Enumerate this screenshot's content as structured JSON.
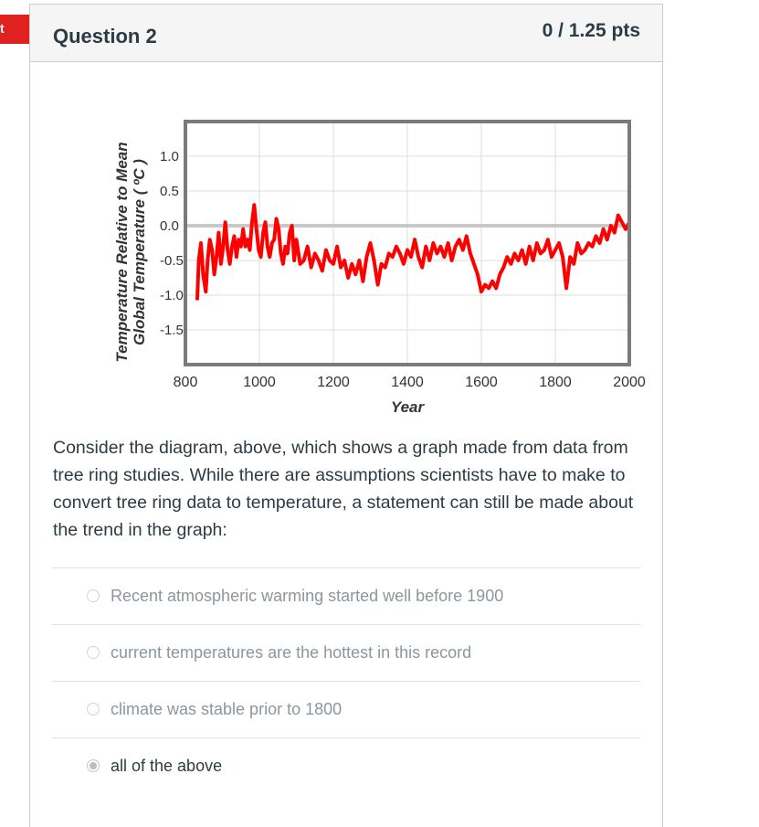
{
  "flag": {
    "label": "t",
    "color": "#e0211f"
  },
  "question": {
    "title": "Question 2",
    "points": "0 / 1.25 pts",
    "text": "Consider the diagram, above, which shows a graph made from data from tree ring studies. While there are assumptions scientists have to make to convert tree ring data to temperature, a statement can still be made about the trend in the graph:"
  },
  "answers": [
    {
      "label": "Recent atmospheric warming started well before 1900",
      "selected": false
    },
    {
      "label": "current temperatures are the hottest in this record",
      "selected": false
    },
    {
      "label": "climate was stable prior to 1800",
      "selected": false
    },
    {
      "label": "all of the above",
      "selected": true
    }
  ],
  "chart_data": {
    "type": "line",
    "title": "",
    "xlabel": "Year",
    "ylabel_line1": "Temperature Relative to Mean",
    "ylabel_line2": "Global Temperature ( ºC )",
    "xlim": [
      800,
      2000
    ],
    "ylim": [
      -2.0,
      1.5
    ],
    "x_ticks": [
      "800",
      "1000",
      "1200",
      "1400",
      "1600",
      "1800",
      "2000"
    ],
    "y_ticks": [
      "1.0",
      "0.5",
      "0.0",
      "-0.5",
      "-1.0",
      "-1.5"
    ],
    "x_tick_values": [
      800,
      1000,
      1200,
      1400,
      1600,
      1800,
      2000
    ],
    "y_tick_values": [
      1.0,
      0.5,
      0.0,
      -0.5,
      -1.0,
      -1.5
    ],
    "grid": true,
    "reference_line": 0.0,
    "line_color": "#ff0000",
    "series": [
      {
        "name": "",
        "x": [
          832,
          836,
          842,
          848,
          855,
          860,
          866,
          872,
          878,
          884,
          890,
          896,
          902,
          908,
          914,
          920,
          926,
          932,
          938,
          944,
          950,
          956,
          962,
          968,
          974,
          980,
          986,
          992,
          998,
          1004,
          1010,
          1016,
          1022,
          1028,
          1034,
          1040,
          1046,
          1052,
          1058,
          1064,
          1070,
          1076,
          1082,
          1088,
          1094,
          1100,
          1110,
          1120,
          1130,
          1140,
          1150,
          1160,
          1170,
          1180,
          1190,
          1200,
          1210,
          1220,
          1230,
          1240,
          1250,
          1260,
          1270,
          1280,
          1290,
          1300,
          1310,
          1320,
          1330,
          1340,
          1350,
          1360,
          1370,
          1380,
          1390,
          1400,
          1410,
          1420,
          1430,
          1440,
          1450,
          1460,
          1470,
          1480,
          1490,
          1500,
          1510,
          1520,
          1530,
          1540,
          1550,
          1560,
          1570,
          1580,
          1590,
          1600,
          1610,
          1620,
          1630,
          1640,
          1650,
          1660,
          1670,
          1680,
          1690,
          1700,
          1710,
          1720,
          1730,
          1740,
          1750,
          1760,
          1770,
          1780,
          1790,
          1800,
          1810,
          1820,
          1830,
          1840,
          1850,
          1860,
          1870,
          1880,
          1890,
          1900,
          1910,
          1920,
          1930,
          1940,
          1950,
          1960,
          1970,
          1980,
          1990,
          2000
        ],
        "values": [
          -1.05,
          -0.5,
          -0.25,
          -0.7,
          -0.95,
          -0.5,
          -0.2,
          -0.35,
          -0.7,
          -0.45,
          -0.1,
          -0.55,
          -0.3,
          0.05,
          -0.35,
          -0.55,
          -0.3,
          -0.15,
          -0.45,
          -0.2,
          -0.3,
          -0.05,
          -0.3,
          -0.2,
          -0.35,
          0.05,
          0.3,
          -0.05,
          -0.35,
          -0.45,
          -0.1,
          0.05,
          -0.3,
          -0.45,
          -0.25,
          -0.2,
          0.1,
          -0.05,
          -0.4,
          -0.55,
          -0.3,
          -0.4,
          -0.1,
          0.0,
          -0.5,
          -0.2,
          -0.55,
          -0.5,
          -0.3,
          -0.6,
          -0.4,
          -0.5,
          -0.65,
          -0.35,
          -0.5,
          -0.55,
          -0.3,
          -0.6,
          -0.5,
          -0.75,
          -0.55,
          -0.7,
          -0.5,
          -0.8,
          -0.45,
          -0.25,
          -0.5,
          -0.85,
          -0.55,
          -0.6,
          -0.4,
          -0.45,
          -0.3,
          -0.4,
          -0.55,
          -0.35,
          -0.45,
          -0.2,
          -0.45,
          -0.6,
          -0.3,
          -0.5,
          -0.25,
          -0.4,
          -0.3,
          -0.45,
          -0.25,
          -0.5,
          -0.3,
          -0.2,
          -0.35,
          -0.15,
          -0.4,
          -0.55,
          -0.7,
          -0.95,
          -0.85,
          -0.9,
          -0.8,
          -0.9,
          -0.7,
          -0.6,
          -0.45,
          -0.55,
          -0.4,
          -0.5,
          -0.35,
          -0.55,
          -0.3,
          -0.5,
          -0.25,
          -0.4,
          -0.35,
          -0.2,
          -0.45,
          -0.35,
          -0.25,
          -0.45,
          -0.9,
          -0.45,
          -0.55,
          -0.25,
          -0.4,
          -0.35,
          -0.25,
          -0.3,
          -0.15,
          -0.25,
          -0.05,
          -0.2,
          0.0,
          -0.1,
          0.15,
          0.05,
          -0.05,
          0.05
        ]
      }
    ]
  }
}
